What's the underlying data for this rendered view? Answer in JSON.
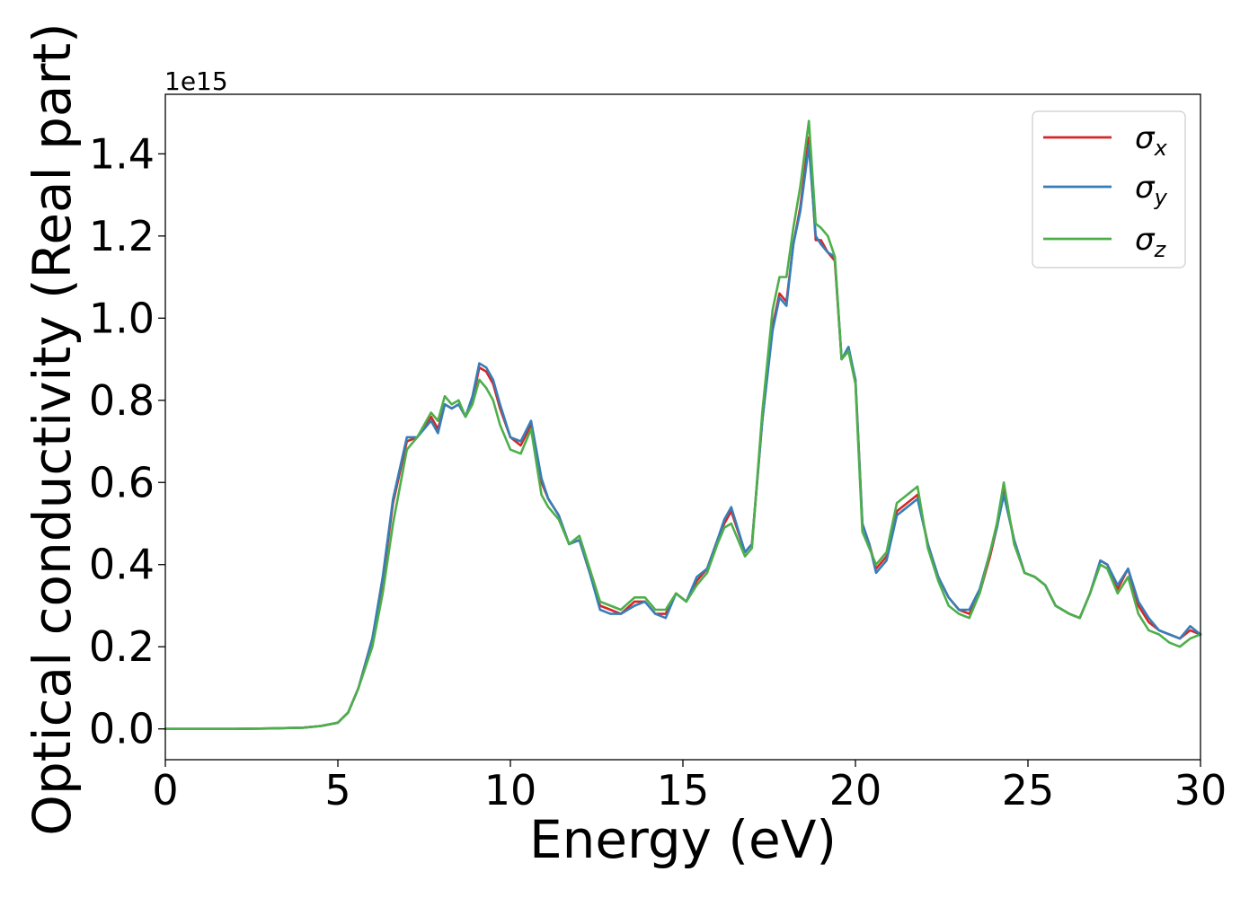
{
  "chart_data": {
    "type": "line",
    "xlabel": "Energy (eV)",
    "ylabel": "Optical conductivity (Real part)",
    "y_offset_label": "1e15",
    "xlim": [
      0,
      30
    ],
    "ylim": [
      -0.075,
      1.545
    ],
    "xticks": [
      0,
      5,
      10,
      15,
      20,
      25,
      30
    ],
    "xtick_labels": [
      "0",
      "5",
      "10",
      "15",
      "20",
      "25",
      "30"
    ],
    "yticks": [
      0.0,
      0.2,
      0.4,
      0.6,
      0.8,
      1.0,
      1.2,
      1.4
    ],
    "ytick_labels": [
      "0.0",
      "0.2",
      "0.4",
      "0.6",
      "0.8",
      "1.0",
      "1.2",
      "1.4"
    ],
    "grid": false,
    "legend_position": "top-right",
    "x": [
      0,
      1,
      2,
      3,
      4,
      4.5,
      5,
      5.3,
      5.6,
      6.0,
      6.3,
      6.6,
      7.0,
      7.3,
      7.7,
      7.9,
      8.1,
      8.3,
      8.5,
      8.7,
      8.9,
      9.1,
      9.3,
      9.5,
      9.7,
      10.0,
      10.3,
      10.6,
      10.9,
      11.1,
      11.4,
      11.7,
      12.0,
      12.3,
      12.6,
      12.9,
      13.2,
      13.6,
      13.9,
      14.2,
      14.5,
      14.8,
      15.1,
      15.4,
      15.7,
      16.0,
      16.2,
      16.4,
      16.8,
      17.0,
      17.3,
      17.6,
      17.8,
      18.0,
      18.2,
      18.4,
      18.65,
      18.85,
      19.0,
      19.2,
      19.4,
      19.6,
      19.8,
      20.0,
      20.2,
      20.4,
      20.6,
      20.9,
      21.2,
      21.5,
      21.8,
      22.1,
      22.4,
      22.7,
      23.0,
      23.3,
      23.6,
      23.9,
      24.1,
      24.3,
      24.6,
      24.9,
      25.2,
      25.5,
      25.8,
      26.2,
      26.5,
      26.8,
      27.1,
      27.3,
      27.6,
      27.9,
      28.2,
      28.5,
      28.8,
      29.1,
      29.4,
      29.7,
      30.0
    ],
    "series": [
      {
        "name": "σx",
        "color": "#d62728",
        "values": [
          0.0,
          0.0,
          0.0,
          0.001,
          0.003,
          0.007,
          0.015,
          0.04,
          0.1,
          0.22,
          0.36,
          0.55,
          0.7,
          0.71,
          0.76,
          0.73,
          0.79,
          0.78,
          0.79,
          0.76,
          0.8,
          0.88,
          0.87,
          0.84,
          0.78,
          0.71,
          0.69,
          0.74,
          0.6,
          0.56,
          0.52,
          0.45,
          0.46,
          0.38,
          0.3,
          0.29,
          0.28,
          0.31,
          0.31,
          0.28,
          0.28,
          0.33,
          0.31,
          0.36,
          0.39,
          0.46,
          0.5,
          0.53,
          0.43,
          0.45,
          0.75,
          0.98,
          1.06,
          1.04,
          1.18,
          1.27,
          1.44,
          1.19,
          1.19,
          1.16,
          1.14,
          0.9,
          0.92,
          0.85,
          0.5,
          0.45,
          0.39,
          0.42,
          0.53,
          0.55,
          0.57,
          0.45,
          0.37,
          0.32,
          0.29,
          0.28,
          0.33,
          0.42,
          0.49,
          0.58,
          0.46,
          0.38,
          0.37,
          0.35,
          0.3,
          0.28,
          0.27,
          0.33,
          0.41,
          0.4,
          0.34,
          0.39,
          0.3,
          0.26,
          0.24,
          0.23,
          0.22,
          0.24,
          0.23
        ]
      },
      {
        "name": "σy",
        "color": "#377eb8",
        "values": [
          0.0,
          0.0,
          0.0,
          0.001,
          0.003,
          0.007,
          0.015,
          0.04,
          0.1,
          0.22,
          0.37,
          0.56,
          0.71,
          0.71,
          0.75,
          0.72,
          0.79,
          0.78,
          0.79,
          0.76,
          0.81,
          0.89,
          0.88,
          0.85,
          0.79,
          0.71,
          0.7,
          0.75,
          0.61,
          0.56,
          0.52,
          0.45,
          0.46,
          0.38,
          0.29,
          0.28,
          0.28,
          0.3,
          0.31,
          0.28,
          0.27,
          0.33,
          0.31,
          0.37,
          0.39,
          0.46,
          0.51,
          0.54,
          0.43,
          0.45,
          0.75,
          0.97,
          1.05,
          1.03,
          1.18,
          1.26,
          1.42,
          1.2,
          1.18,
          1.16,
          1.15,
          0.9,
          0.93,
          0.85,
          0.5,
          0.45,
          0.38,
          0.41,
          0.52,
          0.54,
          0.56,
          0.45,
          0.37,
          0.32,
          0.29,
          0.29,
          0.34,
          0.43,
          0.49,
          0.57,
          0.46,
          0.38,
          0.37,
          0.35,
          0.3,
          0.28,
          0.27,
          0.33,
          0.41,
          0.4,
          0.35,
          0.39,
          0.31,
          0.27,
          0.24,
          0.23,
          0.22,
          0.25,
          0.23
        ]
      },
      {
        "name": "σz",
        "color": "#4daf4a",
        "values": [
          0.0,
          0.0,
          0.0,
          0.001,
          0.003,
          0.007,
          0.015,
          0.04,
          0.1,
          0.2,
          0.33,
          0.5,
          0.68,
          0.71,
          0.77,
          0.75,
          0.81,
          0.79,
          0.8,
          0.76,
          0.79,
          0.85,
          0.83,
          0.8,
          0.74,
          0.68,
          0.67,
          0.73,
          0.57,
          0.54,
          0.51,
          0.45,
          0.47,
          0.39,
          0.31,
          0.3,
          0.29,
          0.32,
          0.32,
          0.29,
          0.29,
          0.33,
          0.31,
          0.35,
          0.38,
          0.45,
          0.49,
          0.5,
          0.42,
          0.44,
          0.77,
          1.02,
          1.1,
          1.1,
          1.22,
          1.32,
          1.48,
          1.23,
          1.22,
          1.2,
          1.15,
          0.9,
          0.92,
          0.84,
          0.48,
          0.44,
          0.4,
          0.43,
          0.55,
          0.57,
          0.59,
          0.44,
          0.36,
          0.3,
          0.28,
          0.27,
          0.33,
          0.43,
          0.5,
          0.6,
          0.45,
          0.38,
          0.37,
          0.35,
          0.3,
          0.28,
          0.27,
          0.33,
          0.4,
          0.39,
          0.33,
          0.37,
          0.28,
          0.24,
          0.23,
          0.21,
          0.2,
          0.22,
          0.23
        ]
      }
    ]
  },
  "legend": {
    "symbol": "σ",
    "subscripts": [
      "x",
      "y",
      "z"
    ]
  }
}
